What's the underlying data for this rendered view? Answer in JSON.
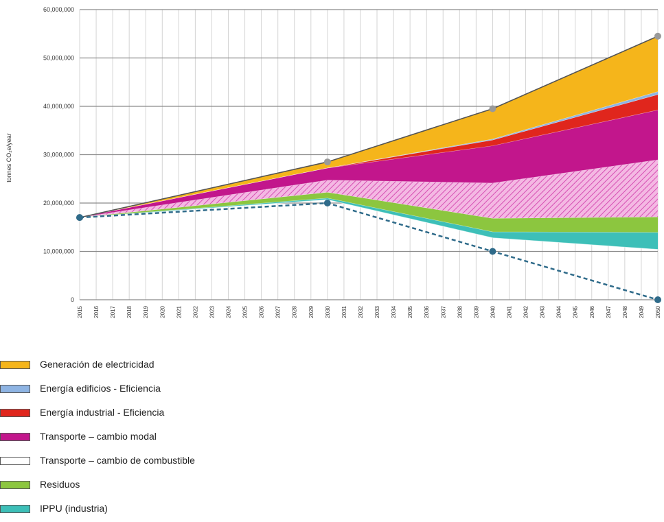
{
  "chart_data": {
    "type": "area",
    "title": "",
    "xlabel": "",
    "ylabel": "tonnes CO₂e/year",
    "x": [
      2015,
      2030,
      2040,
      2050
    ],
    "xlim": [
      2015,
      2050
    ],
    "ylim": [
      0,
      60000000
    ],
    "y_ticks": [
      "0",
      "10,000,000",
      "20,000,000",
      "30,000,000",
      "40,000,000",
      "50,000,000",
      "60,000,000"
    ],
    "x_ticks": [
      "2015",
      "2016",
      "2017",
      "2018",
      "2019",
      "2020",
      "2021",
      "2022",
      "2023",
      "2024",
      "2025",
      "2026",
      "2027",
      "2028",
      "2029",
      "2030",
      "2031",
      "2032",
      "2033",
      "2034",
      "2035",
      "2036",
      "2037",
      "2038",
      "2039",
      "2040",
      "2041",
      "2042",
      "2043",
      "2044",
      "2045",
      "2046",
      "2047",
      "2048",
      "2049",
      "2050"
    ],
    "grid": true,
    "legend_position": "bottom-left",
    "baseline": {
      "x": [
        2015,
        2030,
        2040,
        2050
      ],
      "values": [
        17000000,
        28500000,
        39500000,
        54500000
      ]
    },
    "target_path": {
      "x": [
        2015,
        2030,
        2040,
        2050
      ],
      "values": [
        17000000,
        20000000,
        10000000,
        0
      ],
      "color": "#2f6b8a"
    },
    "series": [
      {
        "name": "IPPU (industria)",
        "color": "#3dbfb8",
        "values": [
          0,
          300000,
          1200000,
          3500000
        ]
      },
      {
        "name": "Residuos",
        "color": "#8cc63f",
        "values": [
          0,
          1200000,
          2800000,
          3200000
        ]
      },
      {
        "name": "Transporte – cambio de combustible",
        "color": "#e88ccf",
        "pattern": "hatch",
        "values": [
          0,
          2500000,
          7300000,
          11800000
        ]
      },
      {
        "name": "Transporte – cambio modal",
        "color": "#c2168c",
        "values": [
          0,
          2500000,
          7700000,
          10300000
        ]
      },
      {
        "name": "Energía industrial - Eficiencia",
        "color": "#e0261d",
        "values": [
          0,
          0,
          1200000,
          3200000
        ]
      },
      {
        "name": "Energía edificios - Eficiencia",
        "color": "#8eb4e3",
        "values": [
          0,
          0,
          200000,
          600000
        ]
      },
      {
        "name": "Generación de electricidad",
        "color": "#f5b51b",
        "values": [
          0,
          1300000,
          6300000,
          11500000
        ]
      }
    ]
  },
  "legend": {
    "items": [
      {
        "label": "Generación de electricidad",
        "color": "#f5b51b"
      },
      {
        "label": "Energía edificios - Eficiencia",
        "color": "#8eb4e3"
      },
      {
        "label": "Energía industrial - Eficiencia",
        "color": "#e0261d"
      },
      {
        "label": "Transporte – cambio modal",
        "color": "#c2168c"
      },
      {
        "label": "Transporte – cambio de combustible",
        "color": "#ffffff"
      },
      {
        "label": "Residuos",
        "color": "#8cc63f"
      },
      {
        "label": "IPPU (industria)",
        "color": "#3dbfb8"
      }
    ]
  }
}
